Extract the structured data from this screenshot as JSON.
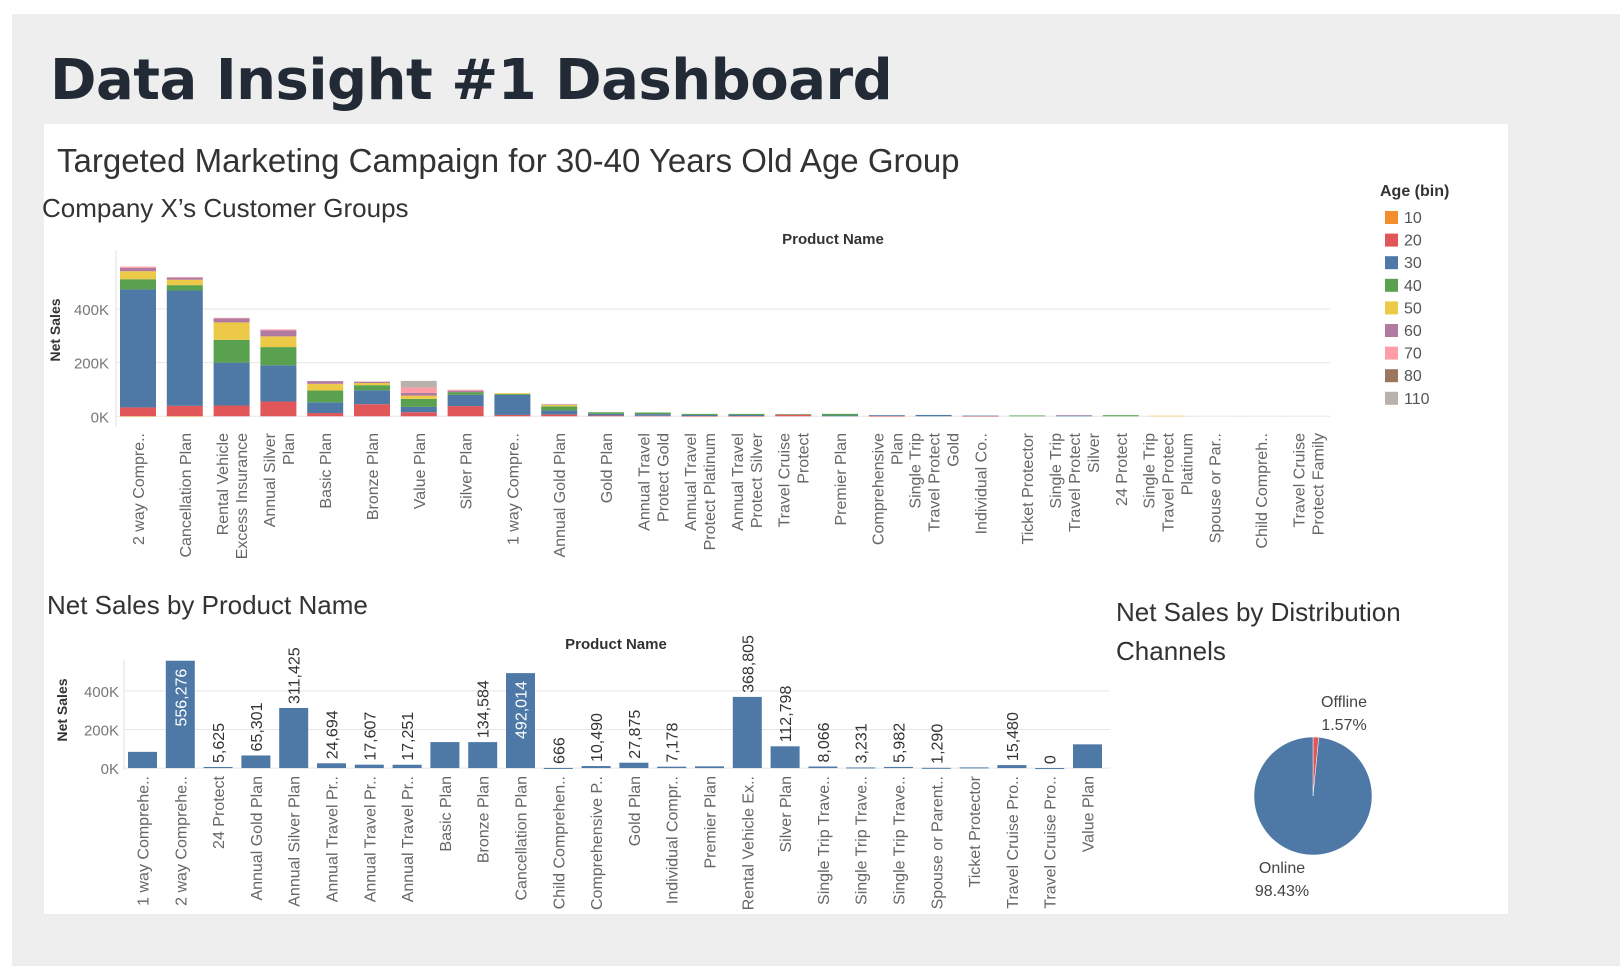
{
  "page": {
    "title": "Data Insight #1 Dashboard",
    "subtitle": "Targeted Marketing Campaign for 30-40 Years Old Age Group"
  },
  "colors": {
    "slide_bg": "#eeeeee",
    "panel_bg": "#ffffff",
    "title": "#222a35",
    "grid": "#e6e6e6"
  },
  "chart_data": [
    {
      "type": "bar",
      "stacked": true,
      "title": "Company X’s Customer Groups",
      "xlabel": "Product Name",
      "ylabel": "Net Sales",
      "ylim": [
        -40000,
        620000
      ],
      "yticks": [
        0,
        200000,
        400000
      ],
      "ytick_labels": [
        "0K",
        "200K",
        "400K"
      ],
      "grid": true,
      "legend_title": "Age (bin)",
      "legend_position": "right",
      "categories": [
        "2 way Compre..",
        "Cancellation Plan",
        "Rental Vehicle Excess Insurance",
        "Annual Silver Plan",
        "Basic Plan",
        "Bronze Plan",
        "Value Plan",
        "Silver Plan",
        "1 way Compre..",
        "Annual Gold Plan",
        "Gold Plan",
        "Annual Travel Protect Gold",
        "Annual Travel Protect Platinum",
        "Annual Travel Protect Silver",
        "Travel Cruise Protect",
        "Premier Plan",
        "Comprehensive Plan",
        "Single Trip Travel Protect Gold",
        "Individual Co..",
        "Ticket Protector",
        "Single Trip Travel Protect Silver",
        "24 Protect",
        "Single Trip Travel Protect Platinum",
        "Spouse or Par..",
        "Child Compreh..",
        "Travel Cruise Protect Family"
      ],
      "series": [
        {
          "name": "10",
          "color": "#f28e2b",
          "values": [
            1000,
            1000,
            0,
            0,
            0,
            0,
            0,
            0,
            0,
            0,
            0,
            0,
            0,
            0,
            0,
            0,
            0,
            0,
            0,
            0,
            0,
            0,
            0,
            0,
            0,
            0
          ]
        },
        {
          "name": "20",
          "color": "#e15759",
          "values": [
            32000,
            38000,
            40000,
            55000,
            12000,
            45000,
            15000,
            38000,
            5000,
            7000,
            3000,
            2000,
            1000,
            1000,
            6000,
            0,
            1000,
            0,
            1000,
            0,
            0,
            0,
            0,
            0,
            0,
            0
          ]
        },
        {
          "name": "30",
          "color": "#4e79a7",
          "values": [
            440000,
            430000,
            160000,
            135000,
            40000,
            52000,
            20000,
            42000,
            75000,
            15000,
            6000,
            6000,
            4000,
            4000,
            0,
            3000,
            3000,
            5000,
            1500,
            0,
            2500,
            0,
            0,
            0,
            0,
            0
          ]
        },
        {
          "name": "40",
          "color": "#59a14f",
          "values": [
            38000,
            20000,
            85000,
            68000,
            44000,
            19000,
            30000,
            10000,
            3000,
            15000,
            6000,
            6000,
            4000,
            4000,
            2000,
            6000,
            0,
            0,
            0,
            3000,
            0,
            4000,
            0,
            0,
            0,
            0
          ]
        },
        {
          "name": "50",
          "color": "#edc948",
          "values": [
            30000,
            20000,
            65000,
            40000,
            25000,
            8000,
            12000,
            0,
            3000,
            6000,
            0,
            0,
            0,
            0,
            0,
            0,
            0,
            0,
            0,
            0,
            0,
            0,
            2000,
            0,
            0,
            0
          ]
        },
        {
          "name": "60",
          "color": "#b07aa1",
          "values": [
            12000,
            8000,
            15000,
            22000,
            10000,
            5000,
            10000,
            5000,
            0,
            2000,
            0,
            0,
            0,
            0,
            0,
            0,
            0,
            0,
            0,
            0,
            1500,
            0,
            0,
            0,
            0,
            0
          ]
        },
        {
          "name": "70",
          "color": "#ff9da7",
          "values": [
            5000,
            2000,
            2000,
            4000,
            0,
            0,
            20000,
            4000,
            0,
            0,
            0,
            0,
            0,
            0,
            0,
            0,
            0,
            0,
            0,
            0,
            0,
            0,
            0,
            0,
            0,
            0
          ]
        },
        {
          "name": "80",
          "color": "#9c755f",
          "values": [
            0,
            0,
            0,
            0,
            0,
            0,
            0,
            0,
            0,
            0,
            0,
            0,
            0,
            0,
            0,
            0,
            0,
            0,
            0,
            0,
            0,
            0,
            0,
            0,
            0,
            0
          ]
        },
        {
          "name": "110",
          "color": "#bab0ac",
          "values": [
            0,
            0,
            0,
            0,
            0,
            0,
            25000,
            0,
            0,
            0,
            0,
            0,
            0,
            0,
            0,
            0,
            0,
            0,
            0,
            0,
            0,
            0,
            0,
            0,
            0,
            0
          ]
        }
      ]
    },
    {
      "type": "bar",
      "title": "Net Sales by Product Name",
      "xlabel": "Product Name",
      "ylabel": "Net Sales",
      "ylim": [
        -10000,
        560000
      ],
      "yticks": [
        0,
        200000,
        400000
      ],
      "ytick_labels": [
        "0K",
        "200K",
        "400K"
      ],
      "grid": true,
      "color": "#4e79a7",
      "categories": [
        "1 way Comprehe..",
        "2 way Comprehe..",
        "24 Protect",
        "Annual Gold Plan",
        "Annual Silver Plan",
        "Annual Travel Pr..",
        "Annual Travel Pr..",
        "Annual Travel Pr..",
        "Basic Plan",
        "Bronze Plan",
        "Cancellation Plan",
        "Child Comprehen..",
        "Comprehensive P..",
        "Gold Plan",
        "Individual Compr..",
        "Premier Plan",
        "Rental Vehicle Ex..",
        "Silver Plan",
        "Single Trip Trave..",
        "Single Trip Trave..",
        "Single Trip Trave..",
        "Spouse or Parent..",
        "Ticket Protector",
        "Travel Cruise Pro..",
        "Travel Cruise Pro..",
        "Value Plan"
      ],
      "values": [
        84000,
        556276,
        5625,
        65301,
        311425,
        24694,
        17607,
        17251,
        134584,
        134584,
        492014,
        666,
        10490,
        27875,
        7178,
        9000,
        368805,
        112798,
        8066,
        3231,
        5982,
        1290,
        3500,
        15480,
        0,
        123000
      ],
      "value_labels": [
        "",
        "556,276",
        "5,625",
        "65,301",
        "311,425",
        "24,694",
        "17,607",
        "17,251",
        "",
        "134,584",
        "492,014",
        "666",
        "10,490",
        "27,875",
        "7,178",
        "",
        "368,805",
        "112,798",
        "8,066",
        "3,231",
        "5,982",
        "1,290",
        "",
        "15,480",
        "0",
        ""
      ]
    },
    {
      "type": "pie",
      "title": "Net Sales by Distribution Channels",
      "labels": [
        "Offline",
        "Online"
      ],
      "values": [
        1.57,
        98.43
      ],
      "value_labels": [
        "1.57%",
        "98.43%"
      ],
      "colors": [
        "#e15759",
        "#4e79a7"
      ]
    }
  ]
}
